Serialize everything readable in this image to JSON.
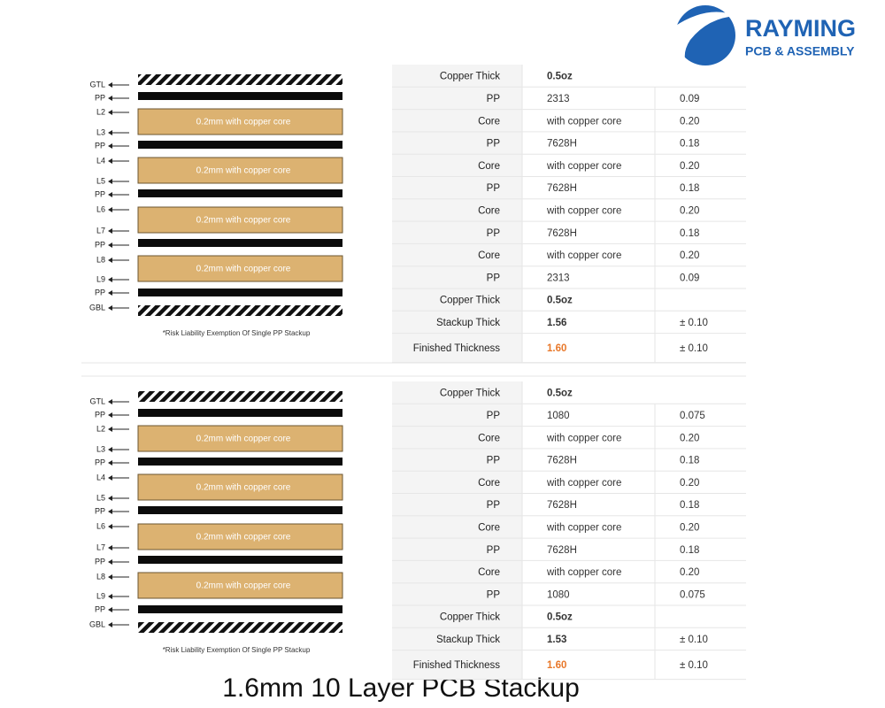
{
  "logo": {
    "name": "RAYMING",
    "tagline": "PCB & ASSEMBLY"
  },
  "stackups": [
    {
      "layer_labels": [
        "GTL",
        "PP",
        "L2",
        "L3",
        "PP",
        "L4",
        "L5",
        "PP",
        "L6",
        "L7",
        "PP",
        "L8",
        "L9",
        "PP",
        "GBL"
      ],
      "core_labels": [
        "0.2mm with copper core",
        "0.2mm with copper core",
        "0.2mm with copper core",
        "0.2mm with copper core"
      ],
      "note": "*Risk Liability Exemption Of Single PP Stackup",
      "rows": [
        [
          "Copper Thick",
          "0.5oz"
        ],
        [
          "PP",
          "2313",
          "0.09"
        ],
        [
          "Core",
          "with copper core",
          "0.20"
        ],
        [
          "PP",
          "7628H",
          "0.18"
        ],
        [
          "Core",
          "with copper core",
          "0.20"
        ],
        [
          "PP",
          "7628H",
          "0.18"
        ],
        [
          "Core",
          "with copper core",
          "0.20"
        ],
        [
          "PP",
          "7628H",
          "0.18"
        ],
        [
          "Core",
          "with copper core",
          "0.20"
        ],
        [
          "PP",
          "2313",
          "0.09"
        ],
        [
          "Copper Thick",
          "0.5oz"
        ],
        [
          "Stackup Thick",
          "1.56",
          "± 0.10"
        ],
        [
          "Finished Thickness",
          "1.60",
          "± 0.10"
        ]
      ]
    },
    {
      "layer_labels": [
        "GTL",
        "PP",
        "L2",
        "L3",
        "PP",
        "L4",
        "L5",
        "PP",
        "L6",
        "L7",
        "PP",
        "L8",
        "L9",
        "PP",
        "GBL"
      ],
      "core_labels": [
        "0.2mm with copper core",
        "0.2mm with copper core",
        "0.2mm with copper core",
        "0.2mm with copper core"
      ],
      "note": "*Risk Liability Exemption Of Single PP Stackup",
      "rows": [
        [
          "Copper Thick",
          "0.5oz"
        ],
        [
          "PP",
          "1080",
          "0.075"
        ],
        [
          "Core",
          "with copper core",
          "0.20"
        ],
        [
          "PP",
          "7628H",
          "0.18"
        ],
        [
          "Core",
          "with copper core",
          "0.20"
        ],
        [
          "PP",
          "7628H",
          "0.18"
        ],
        [
          "Core",
          "with copper core",
          "0.20"
        ],
        [
          "PP",
          "7628H",
          "0.18"
        ],
        [
          "Core",
          "with copper core",
          "0.20"
        ],
        [
          "PP",
          "1080",
          "0.075"
        ],
        [
          "Copper Thick",
          "0.5oz"
        ],
        [
          "Stackup Thick",
          "1.53",
          "± 0.10"
        ],
        [
          "Finished Thickness",
          "1.60",
          "± 0.10"
        ]
      ]
    }
  ],
  "caption": "1.6mm 10 Layer PCB Stackup"
}
